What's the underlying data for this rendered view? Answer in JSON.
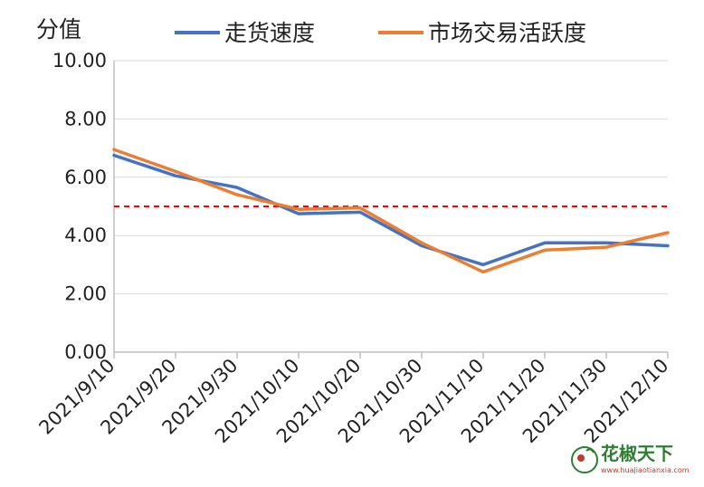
{
  "chart_data": {
    "type": "line",
    "ylabel": "分值",
    "xlabel": "",
    "ylim": [
      0,
      10
    ],
    "yticks": [
      "10.00",
      "8.00",
      "6.00",
      "4.00",
      "2.00",
      "0.00"
    ],
    "categories": [
      "2021/9/10",
      "2021/9/20",
      "2021/9/30",
      "2021/10/10",
      "2021/10/20",
      "2021/10/30",
      "2021/11/10",
      "2021/11/20",
      "2021/11/30",
      "2021/12/10"
    ],
    "series": [
      {
        "name": "走货速度",
        "color": "#4472C4",
        "values": [
          6.75,
          6.05,
          5.65,
          4.75,
          4.8,
          3.65,
          3.0,
          3.75,
          3.75,
          3.65
        ]
      },
      {
        "name": "市场交易活跃度",
        "color": "#ED7D31",
        "values": [
          6.95,
          6.2,
          5.4,
          4.9,
          4.95,
          3.75,
          2.75,
          3.5,
          3.6,
          4.1
        ]
      }
    ],
    "reference_line": {
      "value": 5.0,
      "color": "#FF0000",
      "style": "dashed"
    },
    "grid": true,
    "legend": "top"
  },
  "watermark": {
    "brand": "花椒天下",
    "url": "www.huajiaotianxia.com"
  }
}
